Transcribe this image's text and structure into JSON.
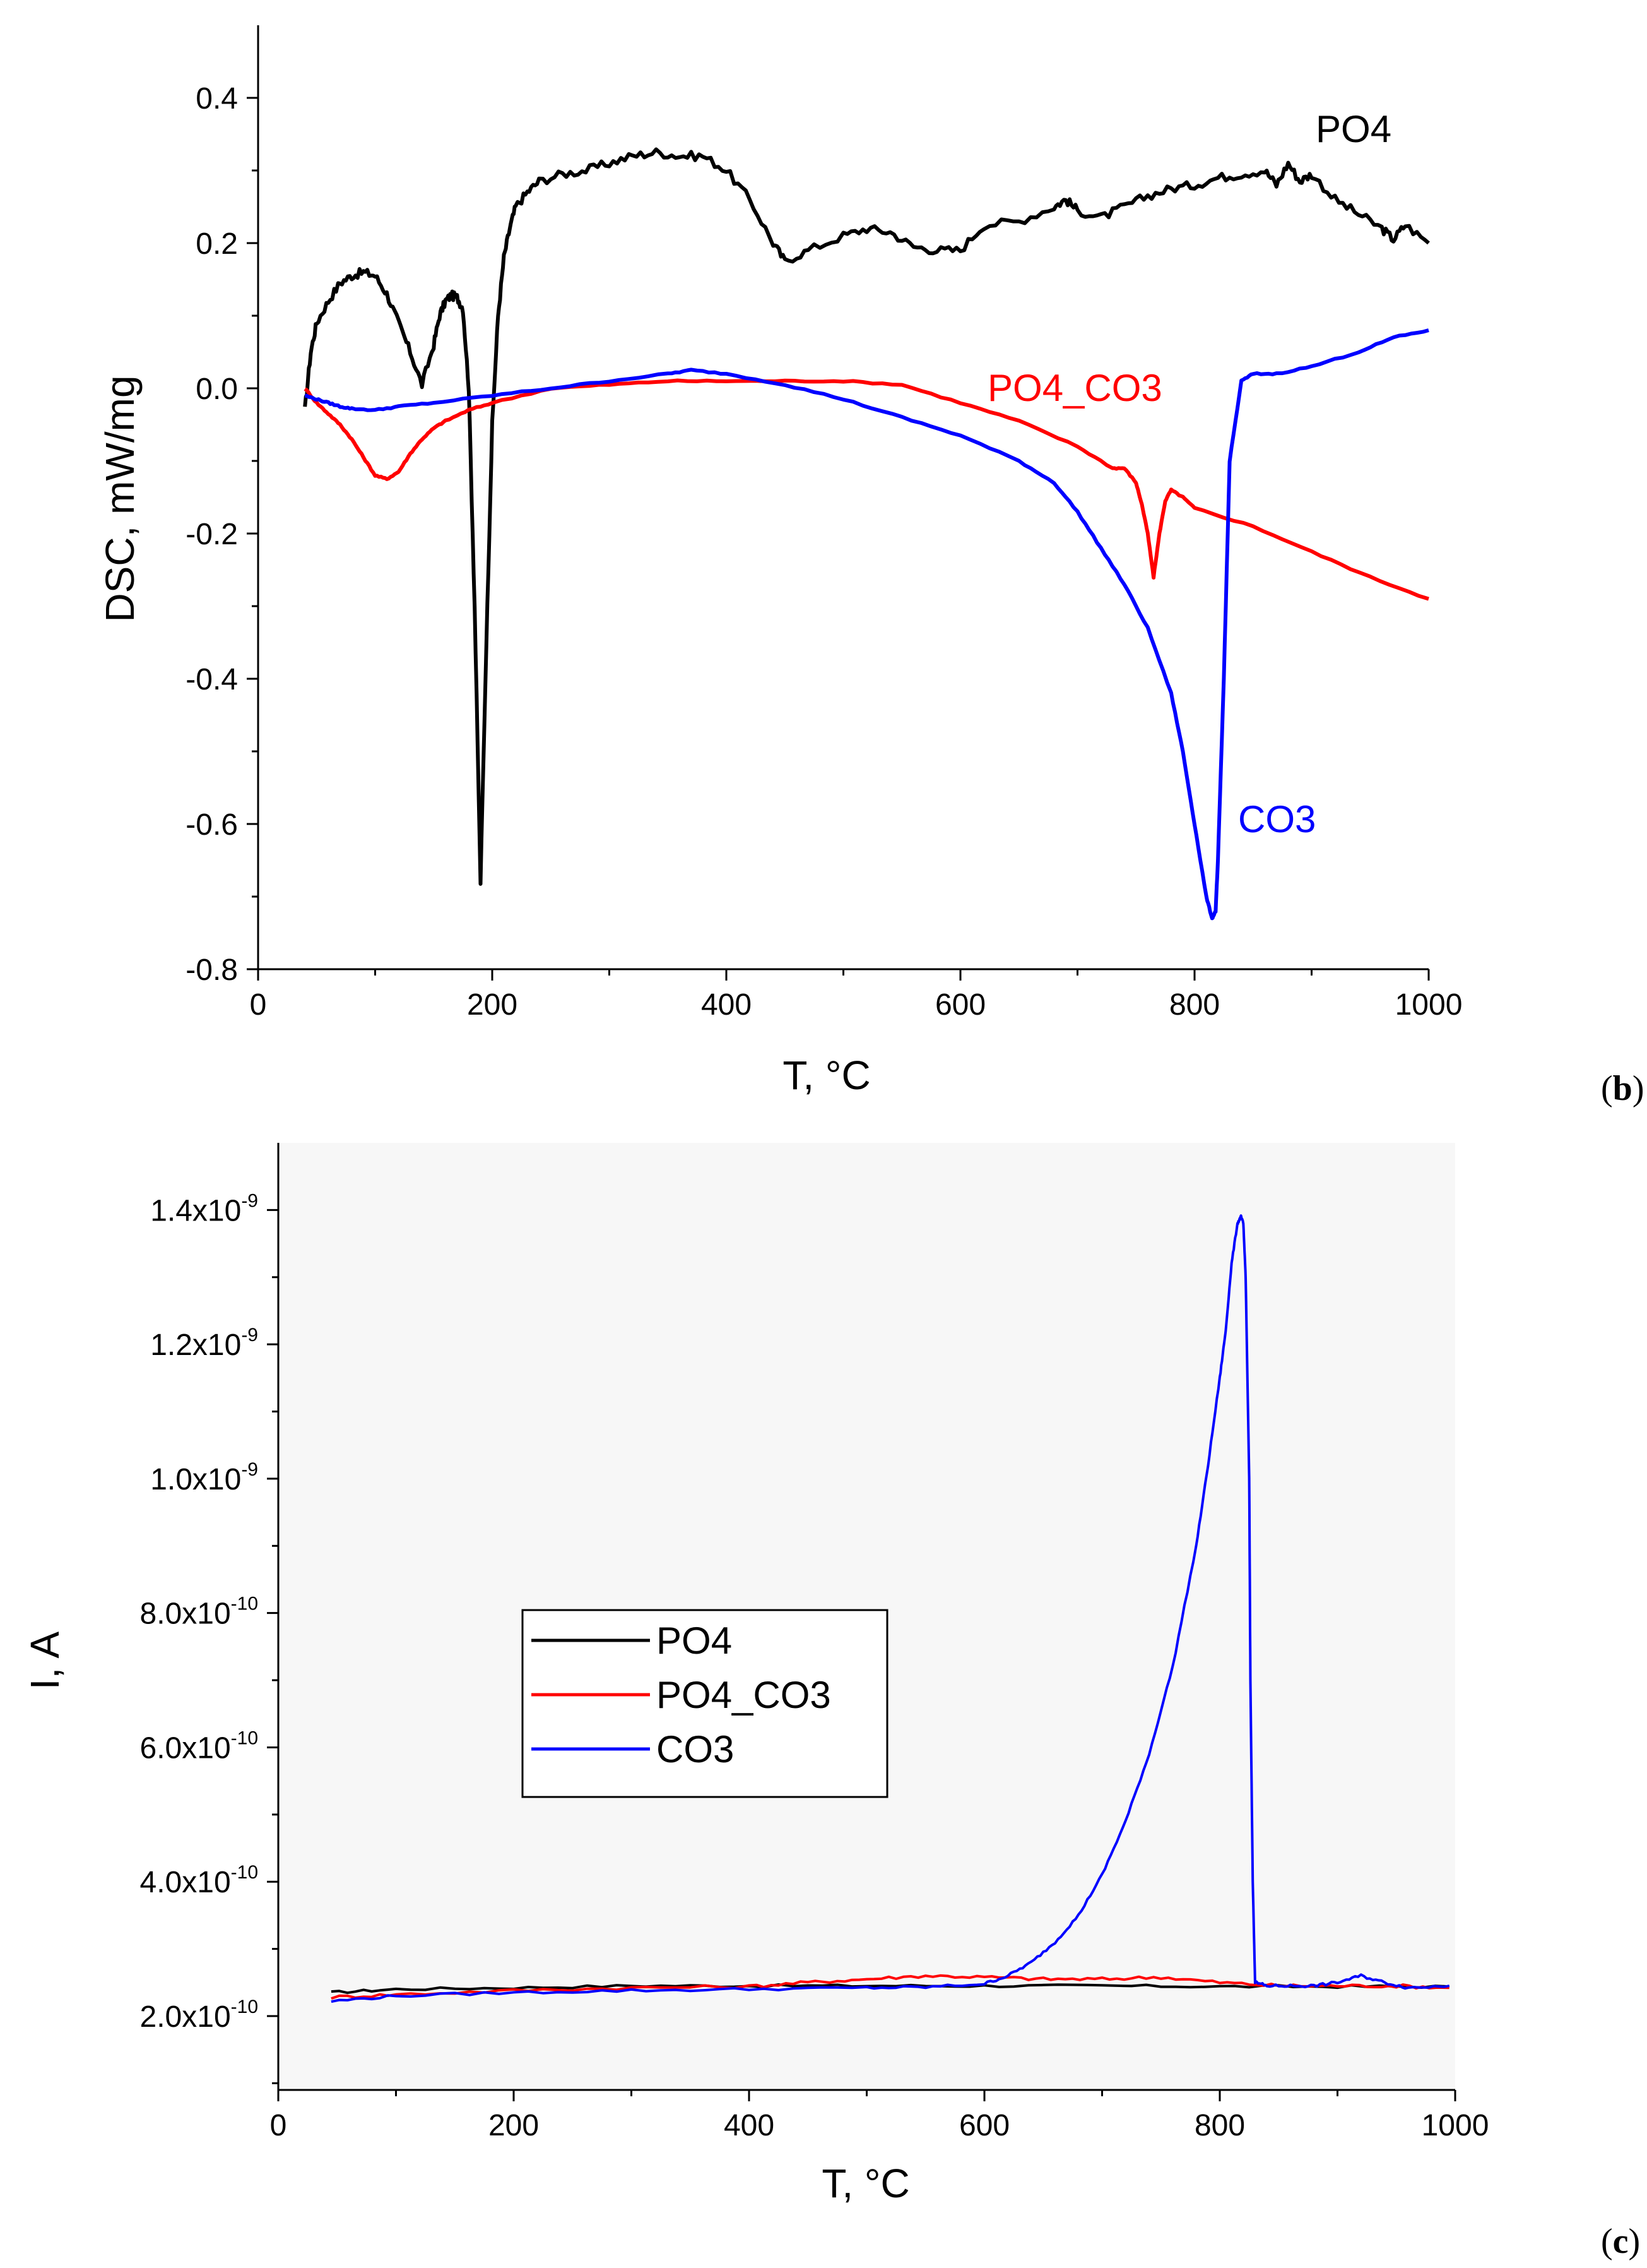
{
  "chart_data": [
    {
      "type": "line",
      "panel_label": "b",
      "xlabel": "T, °C",
      "ylabel": "DSC, mW/mg",
      "xlim": [
        0,
        1000
      ],
      "ylim": [
        -0.8,
        0.5
      ],
      "xticks": [
        0,
        200,
        400,
        600,
        800,
        1000
      ],
      "xtick_labels": [
        "0",
        "200",
        "400",
        "600",
        "800",
        "1000"
      ],
      "yticks": [
        -0.8,
        -0.6,
        -0.4,
        -0.2,
        0.0,
        0.2,
        0.4
      ],
      "ytick_labels": [
        "-0.8",
        "-0.6",
        "-0.4",
        "-0.2",
        "0.0",
        "0.2",
        "0.4"
      ],
      "annotations": [
        {
          "text": "PO4",
          "series": "PO4",
          "color": "#000000"
        },
        {
          "text": "PO4_CO3",
          "series": "PO4_CO3",
          "color": "#ff0000"
        },
        {
          "text": "CO3",
          "series": "CO3",
          "color": "#0000ff"
        }
      ],
      "series": [
        {
          "name": "PO4",
          "color": "#000000",
          "x": [
            40,
            45,
            50,
            60,
            70,
            80,
            90,
            100,
            110,
            120,
            130,
            140,
            150,
            155,
            160,
            165,
            170,
            175,
            180,
            185,
            190,
            195,
            200,
            205,
            210,
            215,
            220,
            230,
            240,
            260,
            280,
            300,
            320,
            340,
            360,
            380,
            400,
            420,
            440,
            450,
            470,
            500,
            520,
            540,
            560,
            580,
            600,
            620,
            650,
            680,
            690,
            700,
            720,
            740,
            760,
            780,
            800,
            820,
            840,
            860,
            870,
            880,
            890,
            900,
            920,
            940,
            960,
            970,
            980,
            1000
          ],
          "y": [
            -0.03,
            0.05,
            0.09,
            0.12,
            0.145,
            0.155,
            0.16,
            0.155,
            0.13,
            0.09,
            0.05,
            0.005,
            0.06,
            0.1,
            0.12,
            0.128,
            0.125,
            0.11,
            0.0,
            -0.3,
            -0.68,
            -0.35,
            -0.05,
            0.1,
            0.18,
            0.22,
            0.25,
            0.27,
            0.285,
            0.295,
            0.3,
            0.31,
            0.32,
            0.325,
            0.32,
            0.32,
            0.3,
            0.26,
            0.2,
            0.175,
            0.19,
            0.21,
            0.22,
            0.215,
            0.195,
            0.19,
            0.19,
            0.225,
            0.23,
            0.25,
            0.26,
            0.245,
            0.235,
            0.25,
            0.265,
            0.275,
            0.28,
            0.29,
            0.295,
            0.3,
            0.28,
            0.31,
            0.285,
            0.295,
            0.26,
            0.24,
            0.22,
            0.205,
            0.225,
            0.2
          ]
        },
        {
          "name": "PO4_CO3",
          "color": "#ff0000",
          "x": [
            40,
            50,
            60,
            70,
            80,
            90,
            100,
            110,
            120,
            130,
            140,
            150,
            160,
            180,
            200,
            250,
            300,
            350,
            400,
            450,
            500,
            550,
            600,
            650,
            700,
            730,
            740,
            750,
            755,
            760,
            765,
            770,
            775,
            780,
            790,
            800,
            850,
            900,
            950,
            1000
          ],
          "y": [
            0.0,
            -0.02,
            -0.035,
            -0.05,
            -0.07,
            -0.095,
            -0.12,
            -0.125,
            -0.115,
            -0.09,
            -0.07,
            -0.055,
            -0.045,
            -0.03,
            -0.02,
            0.0,
            0.005,
            0.01,
            0.01,
            0.01,
            0.01,
            0.005,
            -0.02,
            -0.045,
            -0.08,
            -0.11,
            -0.11,
            -0.13,
            -0.16,
            -0.2,
            -0.26,
            -0.2,
            -0.155,
            -0.14,
            -0.15,
            -0.165,
            -0.19,
            -0.225,
            -0.26,
            -0.29
          ]
        },
        {
          "name": "CO3",
          "color": "#0000ff",
          "x": [
            40,
            50,
            60,
            70,
            80,
            100,
            120,
            150,
            200,
            250,
            300,
            350,
            370,
            400,
            450,
            500,
            550,
            600,
            650,
            680,
            700,
            720,
            740,
            760,
            780,
            790,
            800,
            810,
            815,
            818,
            820,
            825,
            830,
            840,
            850,
            870,
            900,
            940,
            970,
            1000
          ],
          "y": [
            -0.01,
            -0.015,
            -0.02,
            -0.025,
            -0.028,
            -0.03,
            -0.025,
            -0.02,
            -0.01,
            0.0,
            0.01,
            0.02,
            0.025,
            0.02,
            0.005,
            -0.015,
            -0.04,
            -0.065,
            -0.1,
            -0.13,
            -0.17,
            -0.22,
            -0.27,
            -0.33,
            -0.42,
            -0.5,
            -0.6,
            -0.7,
            -0.73,
            -0.72,
            -0.65,
            -0.4,
            -0.1,
            0.01,
            0.02,
            0.02,
            0.03,
            0.05,
            0.07,
            0.08
          ]
        }
      ]
    },
    {
      "type": "line",
      "panel_label": "c",
      "xlabel": "T, °C",
      "ylabel": "I, A",
      "xlim": [
        0,
        1000
      ],
      "ylim": [
        9e-11,
        1.5e-09
      ],
      "xticks": [
        0,
        200,
        400,
        600,
        800,
        1000
      ],
      "xtick_labels": [
        "0",
        "200",
        "400",
        "600",
        "800",
        "1000"
      ],
      "yticks": [
        2e-10,
        4e-10,
        6e-10,
        8e-10,
        1e-09,
        1.2e-09,
        1.4e-09
      ],
      "ytick_labels": [
        {
          "base": "2.0x10",
          "exp": "-10"
        },
        {
          "base": "4.0x10",
          "exp": "-10"
        },
        {
          "base": "6.0x10",
          "exp": "-10"
        },
        {
          "base": "8.0x10",
          "exp": "-10"
        },
        {
          "base": "1.0x10",
          "exp": "-9"
        },
        {
          "base": "1.2x10",
          "exp": "-9"
        },
        {
          "base": "1.4x10",
          "exp": "-9"
        }
      ],
      "legend": {
        "position": "center-left",
        "entries": [
          "PO4",
          "PO4_CO3",
          "CO3"
        ]
      },
      "series": [
        {
          "name": "PO4",
          "color": "#000000",
          "x": [
            45,
            100,
            200,
            300,
            400,
            500,
            600,
            700,
            800,
            900,
            995
          ],
          "y": [
            2.35e-10,
            2.4e-10,
            2.42e-10,
            2.45e-10,
            2.45e-10,
            2.45e-10,
            2.45e-10,
            2.45e-10,
            2.44e-10,
            2.44e-10,
            2.44e-10
          ]
        },
        {
          "name": "PO4_CO3",
          "color": "#ff0000",
          "x": [
            45,
            100,
            200,
            300,
            400,
            450,
            500,
            550,
            600,
            650,
            700,
            750,
            800,
            850,
            900,
            950,
            995
          ],
          "y": [
            2.28e-10,
            2.32e-10,
            2.38e-10,
            2.42e-10,
            2.44e-10,
            2.5e-10,
            2.55e-10,
            2.6e-10,
            2.58e-10,
            2.55e-10,
            2.55e-10,
            2.58e-10,
            2.5e-10,
            2.45e-10,
            2.45e-10,
            2.45e-10,
            2.42e-10
          ]
        },
        {
          "name": "CO3",
          "color": "#0000ff",
          "x": [
            45,
            100,
            200,
            300,
            400,
            500,
            550,
            600,
            620,
            640,
            660,
            680,
            700,
            720,
            740,
            760,
            780,
            790,
            800,
            805,
            810,
            815,
            818,
            820,
            822,
            825,
            826,
            828,
            830,
            840,
            860,
            880,
            900,
            920,
            940,
            960,
            995
          ],
          "y": [
            2.22e-10,
            2.3e-10,
            2.35e-10,
            2.38e-10,
            2.4e-10,
            2.42e-10,
            2.43e-10,
            2.48e-10,
            2.6e-10,
            2.8e-10,
            3.1e-10,
            3.5e-10,
            4.1e-10,
            4.9e-10,
            5.9e-10,
            7.2e-10,
            9e-10,
            1.02e-09,
            1.15e-09,
            1.22e-09,
            1.32e-09,
            1.38e-09,
            1.39e-09,
            1.38e-09,
            1.3e-09,
            1e-09,
            7e-10,
            4e-10,
            2.5e-10,
            2.45e-10,
            2.45e-10,
            2.45e-10,
            2.5e-10,
            2.6e-10,
            2.5e-10,
            2.42e-10,
            2.45e-10
          ]
        }
      ]
    }
  ]
}
